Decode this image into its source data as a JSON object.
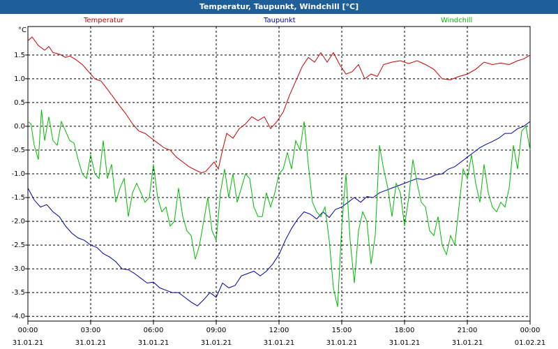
{
  "window": {
    "title": "Temperatur, Taupunkt, Windchill [°C]"
  },
  "chart_data": {
    "type": "line",
    "title": "Temperatur, Taupunkt, Windchill [°C]",
    "yunit": "°C",
    "ylim": [
      -4.1,
      2.1
    ],
    "yticks": [
      "-4.0",
      "-3.5",
      "-3.0",
      "-2.5",
      "-2.0",
      "-1.5",
      "-1.0",
      "-0.5",
      "0.0",
      "0.5",
      "1.0",
      "1.5"
    ],
    "yvals": [
      -4.0,
      -3.5,
      -3.0,
      -2.5,
      -2.0,
      -1.5,
      -1.0,
      -0.5,
      0.0,
      0.5,
      1.0,
      1.5
    ],
    "xlim": [
      0,
      24
    ],
    "xticks": [
      {
        "t": 0,
        "time": "00:00",
        "date": "31.01.21"
      },
      {
        "t": 3,
        "time": "03:00",
        "date": "31.01.21"
      },
      {
        "t": 6,
        "time": "06:00",
        "date": "31.01.21"
      },
      {
        "t": 9,
        "time": "09:00",
        "date": "31.01.21"
      },
      {
        "t": 12,
        "time": "12:00",
        "date": "31.01.21"
      },
      {
        "t": 15,
        "time": "15:00",
        "date": "31.01.21"
      },
      {
        "t": 18,
        "time": "18:00",
        "date": "31.01.21"
      },
      {
        "t": 21,
        "time": "21:00",
        "date": "31.01.21"
      },
      {
        "t": 24,
        "time": "00:00",
        "date": "01.02.21"
      }
    ],
    "series": [
      {
        "name": "Temperatur",
        "color": "#cc0000",
        "points": [
          [
            0,
            1.8
          ],
          [
            0.2,
            1.88
          ],
          [
            0.5,
            1.7
          ],
          [
            0.8,
            1.6
          ],
          [
            1.0,
            1.68
          ],
          [
            1.2,
            1.55
          ],
          [
            1.5,
            1.52
          ],
          [
            1.8,
            1.45
          ],
          [
            2.0,
            1.48
          ],
          [
            2.3,
            1.4
          ],
          [
            2.6,
            1.3
          ],
          [
            2.9,
            1.15
          ],
          [
            3.2,
            1.0
          ],
          [
            3.5,
            0.95
          ],
          [
            3.8,
            0.78
          ],
          [
            4.1,
            0.6
          ],
          [
            4.4,
            0.42
          ],
          [
            4.7,
            0.25
          ],
          [
            5.0,
            0.05
          ],
          [
            5.3,
            -0.1
          ],
          [
            5.6,
            -0.15
          ],
          [
            5.9,
            -0.25
          ],
          [
            6.2,
            -0.35
          ],
          [
            6.5,
            -0.45
          ],
          [
            6.8,
            -0.5
          ],
          [
            7.1,
            -0.65
          ],
          [
            7.4,
            -0.75
          ],
          [
            7.7,
            -0.85
          ],
          [
            8.0,
            -0.92
          ],
          [
            8.3,
            -0.98
          ],
          [
            8.5,
            -0.95
          ],
          [
            8.7,
            -0.85
          ],
          [
            8.9,
            -0.75
          ],
          [
            9.1,
            -0.9
          ],
          [
            9.3,
            -0.5
          ],
          [
            9.5,
            -0.15
          ],
          [
            9.8,
            -0.25
          ],
          [
            10.1,
            -0.05
          ],
          [
            10.4,
            0.05
          ],
          [
            10.7,
            0.2
          ],
          [
            11.0,
            0.12
          ],
          [
            11.3,
            0.2
          ],
          [
            11.6,
            -0.05
          ],
          [
            11.9,
            0.1
          ],
          [
            12.2,
            0.3
          ],
          [
            12.5,
            0.65
          ],
          [
            12.8,
            0.95
          ],
          [
            13.1,
            1.25
          ],
          [
            13.4,
            1.45
          ],
          [
            13.7,
            1.35
          ],
          [
            14.0,
            1.55
          ],
          [
            14.3,
            1.35
          ],
          [
            14.6,
            1.55
          ],
          [
            14.9,
            1.3
          ],
          [
            15.2,
            1.1
          ],
          [
            15.5,
            1.15
          ],
          [
            15.8,
            1.3
          ],
          [
            16.1,
            1.0
          ],
          [
            16.4,
            1.1
          ],
          [
            16.7,
            1.05
          ],
          [
            17.0,
            1.3
          ],
          [
            17.4,
            1.35
          ],
          [
            17.8,
            1.38
          ],
          [
            18.2,
            1.32
          ],
          [
            18.6,
            1.38
          ],
          [
            19.0,
            1.3
          ],
          [
            19.4,
            1.2
          ],
          [
            19.8,
            1.0
          ],
          [
            20.2,
            0.98
          ],
          [
            20.6,
            1.05
          ],
          [
            21.0,
            1.1
          ],
          [
            21.4,
            1.2
          ],
          [
            21.8,
            1.35
          ],
          [
            22.2,
            1.3
          ],
          [
            22.6,
            1.33
          ],
          [
            23.0,
            1.3
          ],
          [
            23.4,
            1.38
          ],
          [
            23.7,
            1.42
          ],
          [
            24.0,
            1.5
          ]
        ]
      },
      {
        "name": "Taupunkt",
        "color": "#0000aa",
        "points": [
          [
            0,
            -1.3
          ],
          [
            0.3,
            -1.55
          ],
          [
            0.6,
            -1.7
          ],
          [
            0.9,
            -1.65
          ],
          [
            1.2,
            -1.8
          ],
          [
            1.5,
            -1.9
          ],
          [
            1.8,
            -2.1
          ],
          [
            2.1,
            -2.25
          ],
          [
            2.4,
            -2.35
          ],
          [
            2.7,
            -2.4
          ],
          [
            3.0,
            -2.5
          ],
          [
            3.3,
            -2.55
          ],
          [
            3.6,
            -2.68
          ],
          [
            3.9,
            -2.75
          ],
          [
            4.2,
            -2.85
          ],
          [
            4.5,
            -3.0
          ],
          [
            4.8,
            -3.02
          ],
          [
            5.1,
            -3.1
          ],
          [
            5.4,
            -3.2
          ],
          [
            5.7,
            -3.3
          ],
          [
            6.0,
            -3.28
          ],
          [
            6.3,
            -3.4
          ],
          [
            6.6,
            -3.45
          ],
          [
            6.9,
            -3.5
          ],
          [
            7.2,
            -3.5
          ],
          [
            7.5,
            -3.6
          ],
          [
            7.8,
            -3.7
          ],
          [
            8.1,
            -3.78
          ],
          [
            8.4,
            -3.65
          ],
          [
            8.7,
            -3.5
          ],
          [
            9.0,
            -3.6
          ],
          [
            9.3,
            -3.3
          ],
          [
            9.6,
            -3.4
          ],
          [
            9.9,
            -3.35
          ],
          [
            10.2,
            -3.15
          ],
          [
            10.5,
            -3.1
          ],
          [
            10.8,
            -3.05
          ],
          [
            11.1,
            -3.15
          ],
          [
            11.4,
            -3.05
          ],
          [
            11.7,
            -2.9
          ],
          [
            12.0,
            -2.7
          ],
          [
            12.3,
            -2.4
          ],
          [
            12.6,
            -2.15
          ],
          [
            12.9,
            -1.95
          ],
          [
            13.2,
            -1.8
          ],
          [
            13.5,
            -1.85
          ],
          [
            13.8,
            -1.95
          ],
          [
            14.1,
            -1.8
          ],
          [
            14.4,
            -1.92
          ],
          [
            14.7,
            -1.75
          ],
          [
            15.0,
            -1.7
          ],
          [
            15.3,
            -1.6
          ],
          [
            15.6,
            -1.5
          ],
          [
            15.9,
            -1.6
          ],
          [
            16.2,
            -1.48
          ],
          [
            16.5,
            -1.5
          ],
          [
            16.8,
            -1.4
          ],
          [
            17.1,
            -1.35
          ],
          [
            17.4,
            -1.3
          ],
          [
            17.7,
            -1.25
          ],
          [
            18.0,
            -1.2
          ],
          [
            18.3,
            -1.15
          ],
          [
            18.6,
            -1.1
          ],
          [
            18.9,
            -1.12
          ],
          [
            19.2,
            -1.08
          ],
          [
            19.5,
            -1.02
          ],
          [
            19.8,
            -1.0
          ],
          [
            20.1,
            -0.9
          ],
          [
            20.4,
            -0.85
          ],
          [
            20.7,
            -0.75
          ],
          [
            21.0,
            -0.65
          ],
          [
            21.3,
            -0.55
          ],
          [
            21.6,
            -0.45
          ],
          [
            21.9,
            -0.38
          ],
          [
            22.2,
            -0.32
          ],
          [
            22.5,
            -0.25
          ],
          [
            22.8,
            -0.15
          ],
          [
            23.1,
            -0.15
          ],
          [
            23.4,
            -0.05
          ],
          [
            23.7,
            0.0
          ],
          [
            24.0,
            0.1
          ]
        ]
      },
      {
        "name": "Windchill",
        "color": "#00bb00",
        "points": [
          [
            0,
            0.1
          ],
          [
            0.15,
            0.05
          ],
          [
            0.3,
            -0.4
          ],
          [
            0.5,
            -0.7
          ],
          [
            0.65,
            0.35
          ],
          [
            0.8,
            -0.3
          ],
          [
            1.0,
            0.2
          ],
          [
            1.2,
            -0.3
          ],
          [
            1.4,
            -0.4
          ],
          [
            1.6,
            0.1
          ],
          [
            1.8,
            -0.1
          ],
          [
            2.0,
            -0.3
          ],
          [
            2.2,
            -0.35
          ],
          [
            2.4,
            -0.7
          ],
          [
            2.6,
            -1.0
          ],
          [
            2.8,
            -1.1
          ],
          [
            3.0,
            -0.6
          ],
          [
            3.2,
            -1.0
          ],
          [
            3.4,
            -1.1
          ],
          [
            3.6,
            -0.3
          ],
          [
            3.8,
            -1.1
          ],
          [
            4.0,
            -0.8
          ],
          [
            4.2,
            -1.6
          ],
          [
            4.4,
            -1.3
          ],
          [
            4.6,
            -1.1
          ],
          [
            4.8,
            -1.9
          ],
          [
            5.0,
            -1.4
          ],
          [
            5.2,
            -1.2
          ],
          [
            5.4,
            -1.4
          ],
          [
            5.6,
            -1.6
          ],
          [
            5.8,
            -1.5
          ],
          [
            6.0,
            -0.8
          ],
          [
            6.2,
            -1.5
          ],
          [
            6.4,
            -1.8
          ],
          [
            6.6,
            -1.7
          ],
          [
            6.8,
            -2.1
          ],
          [
            7.0,
            -2.0
          ],
          [
            7.2,
            -1.3
          ],
          [
            7.4,
            -1.9
          ],
          [
            7.6,
            -2.2
          ],
          [
            7.8,
            -2.3
          ],
          [
            8.0,
            -2.8
          ],
          [
            8.2,
            -2.5
          ],
          [
            8.4,
            -2.0
          ],
          [
            8.6,
            -1.5
          ],
          [
            8.8,
            -2.2
          ],
          [
            9.0,
            -2.4
          ],
          [
            9.2,
            -1.4
          ],
          [
            9.4,
            -0.9
          ],
          [
            9.6,
            -1.5
          ],
          [
            9.8,
            -1.0
          ],
          [
            10.0,
            -1.6
          ],
          [
            10.2,
            -1.3
          ],
          [
            10.4,
            -1.0
          ],
          [
            10.6,
            -1.1
          ],
          [
            10.8,
            -1.7
          ],
          [
            11.0,
            -1.9
          ],
          [
            11.2,
            -1.9
          ],
          [
            11.4,
            -1.4
          ],
          [
            11.6,
            -1.7
          ],
          [
            11.8,
            -1.4
          ],
          [
            12.0,
            -1.0
          ],
          [
            12.2,
            -0.9
          ],
          [
            12.4,
            -0.55
          ],
          [
            12.6,
            -0.9
          ],
          [
            12.8,
            -0.3
          ],
          [
            13.0,
            -0.5
          ],
          [
            13.2,
            0.1
          ],
          [
            13.4,
            -0.8
          ],
          [
            13.6,
            -1.6
          ],
          [
            13.8,
            -1.8
          ],
          [
            14.0,
            -1.9
          ],
          [
            14.2,
            -1.7
          ],
          [
            14.4,
            -2.4
          ],
          [
            14.6,
            -3.4
          ],
          [
            14.8,
            -3.8
          ],
          [
            15.0,
            -2.1
          ],
          [
            15.2,
            -1.0
          ],
          [
            15.4,
            -2.4
          ],
          [
            15.6,
            -3.3
          ],
          [
            15.8,
            -2.2
          ],
          [
            16.0,
            -1.8
          ],
          [
            16.2,
            -2.0
          ],
          [
            16.4,
            -2.9
          ],
          [
            16.6,
            -2.3
          ],
          [
            16.8,
            -0.4
          ],
          [
            17.0,
            -0.9
          ],
          [
            17.2,
            -1.3
          ],
          [
            17.4,
            -1.9
          ],
          [
            17.6,
            -1.2
          ],
          [
            17.8,
            -1.4
          ],
          [
            18.0,
            -2.1
          ],
          [
            18.2,
            -1.5
          ],
          [
            18.4,
            -0.7
          ],
          [
            18.6,
            -1.2
          ],
          [
            18.8,
            -1.6
          ],
          [
            19.0,
            -1.7
          ],
          [
            19.2,
            -2.2
          ],
          [
            19.4,
            -2.3
          ],
          [
            19.6,
            -1.9
          ],
          [
            19.8,
            -2.5
          ],
          [
            20.0,
            -2.7
          ],
          [
            20.2,
            -2.3
          ],
          [
            20.4,
            -2.5
          ],
          [
            20.6,
            -1.7
          ],
          [
            20.8,
            -0.9
          ],
          [
            21.0,
            -1.1
          ],
          [
            21.2,
            -0.6
          ],
          [
            21.4,
            -1.2
          ],
          [
            21.6,
            -1.6
          ],
          [
            21.8,
            -0.8
          ],
          [
            22.0,
            -1.4
          ],
          [
            22.2,
            -1.7
          ],
          [
            22.4,
            -1.8
          ],
          [
            22.6,
            -1.6
          ],
          [
            22.8,
            -1.7
          ],
          [
            23.0,
            -1.3
          ],
          [
            23.2,
            -0.4
          ],
          [
            23.4,
            -0.9
          ],
          [
            23.6,
            -0.1
          ],
          [
            23.8,
            0.0
          ],
          [
            24.0,
            -0.5
          ]
        ]
      }
    ]
  }
}
